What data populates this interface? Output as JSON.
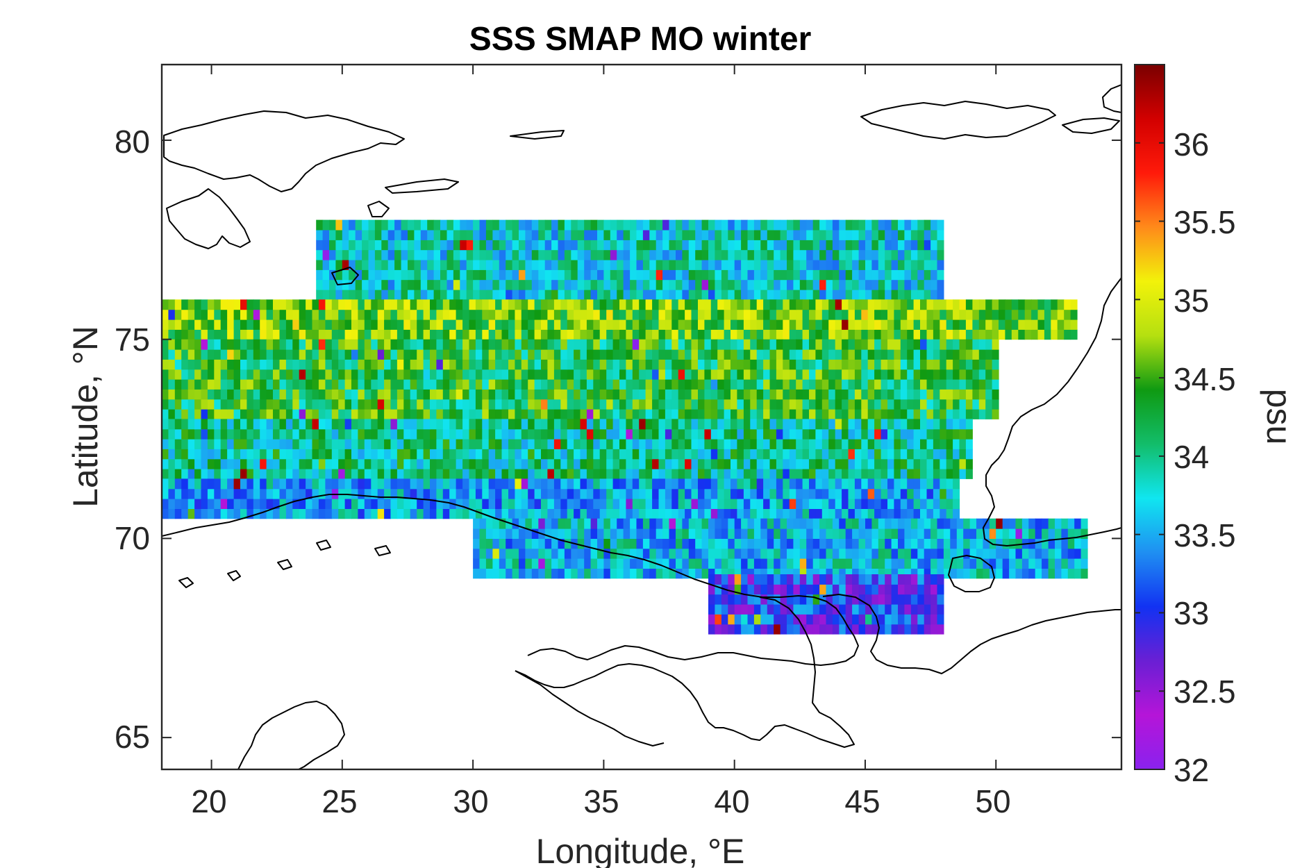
{
  "title": "SSS SMAP MO winter",
  "xlabel": "Longitude, °E",
  "ylabel": "Latitude, °N",
  "colorbar": {
    "label": "psu",
    "range": [
      32,
      36.5
    ],
    "ticks": [
      "32",
      "32.5",
      "33",
      "33.5",
      "34",
      "34.5",
      "35",
      "35.5",
      "36"
    ],
    "colormap": [
      "#8a22ee",
      "#b515d8",
      "#6a1fd4",
      "#1232f2",
      "#1f8ff2",
      "#10e6f0",
      "#12bd6a",
      "#0f9a12",
      "#b5e010",
      "#f2f20a",
      "#ff8a1a",
      "#ff1a0a",
      "#d20000",
      "#7a0000"
    ]
  },
  "chart_data": {
    "type": "heatmap",
    "title": "SSS SMAP MO winter",
    "xlabel": "Longitude, °E",
    "ylabel": "Latitude, °N",
    "xlim": [
      18.1,
      54.8
    ],
    "ylim": [
      64.2,
      81.9
    ],
    "xticks": [
      "20",
      "25",
      "30",
      "35",
      "40",
      "45",
      "50"
    ],
    "yticks": [
      "65",
      "70",
      "75",
      "80"
    ],
    "grid": false,
    "colorbar_label": "psu",
    "clim": [
      32,
      36.5
    ],
    "description_values": {
      "lon_range": [
        18.1,
        53.3
      ],
      "lat_range": [
        67.6,
        77.8
      ]
    },
    "bands": [
      {
        "lat_min": 76.0,
        "lat_max": 77.8,
        "lon_start": 24.0,
        "lon_end": 48.0,
        "value": 33.8
      },
      {
        "lat_min": 75.0,
        "lat_max": 76.0,
        "lon_start": 18.1,
        "lon_end": 53.0,
        "value": 34.6
      },
      {
        "lat_min": 73.0,
        "lat_max": 75.0,
        "lon_start": 18.1,
        "lon_end": 50.0,
        "value": 34.3
      },
      {
        "lat_min": 71.5,
        "lat_max": 73.0,
        "lon_start": 18.1,
        "lon_end": 49.0,
        "value": 34.0
      },
      {
        "lat_min": 70.5,
        "lat_max": 71.5,
        "lon_start": 18.1,
        "lon_end": 48.5,
        "value": 33.5
      },
      {
        "lat_min": 69.0,
        "lat_max": 70.5,
        "lon_start": 30.0,
        "lon_end": 53.3,
        "value": 33.6
      },
      {
        "lat_min": 67.6,
        "lat_max": 69.0,
        "lon_start": 39.0,
        "lon_end": 48.0,
        "value": 33.0
      }
    ]
  }
}
